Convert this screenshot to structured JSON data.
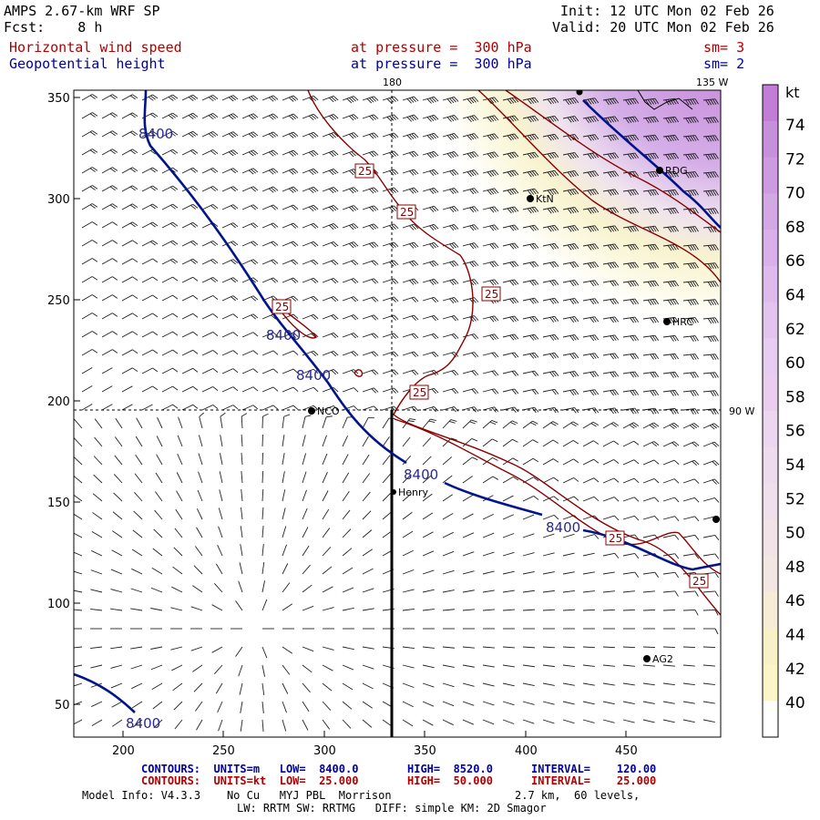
{
  "header": {
    "model": "AMPS 2.67-km WRF SP",
    "forecast": "Fcst:    8 h",
    "init": "Init: 12 UTC Mon 02 Feb 26",
    "valid": "Valid: 20 UTC Mon 02 Feb 26",
    "field1": {
      "name": "Horizontal wind speed",
      "level": "at pressure =  300 hPa",
      "smooth": "sm= 3"
    },
    "field2": {
      "name": "Geopotential height",
      "level": "at pressure =  300 hPa",
      "smooth": "sm= 2"
    }
  },
  "map": {
    "x_ticks": [
      "200",
      "250",
      "300",
      "350",
      "400",
      "450"
    ],
    "y_ticks": [
      "350",
      "300",
      "250",
      "200",
      "150",
      "100",
      "50"
    ],
    "meridian_labels": {
      "m180": "180",
      "m135w": "135 W",
      "m90w": "90 W"
    },
    "stations": [
      {
        "name": "KtN"
      },
      {
        "name": "RDG"
      },
      {
        "name": "HRC"
      },
      {
        "name": "NCO"
      },
      {
        "name": "Henry"
      },
      {
        "name": "AG2"
      }
    ],
    "height_contour_label": "8400",
    "wind_contour_label": "25"
  },
  "colorbar": {
    "unit": "kt",
    "labels": [
      "74",
      "72",
      "70",
      "68",
      "66",
      "64",
      "62",
      "60",
      "58",
      "56",
      "54",
      "52",
      "50",
      "48",
      "46",
      "44",
      "42",
      "40"
    ],
    "colors": [
      "#c27ed6",
      "#c890dc",
      "#ce9be0",
      "#d4a7e5",
      "#d9b1e8",
      "#debbec",
      "#e2c4ef",
      "#e6cdf1",
      "#eacdef",
      "#edd6ef",
      "#efdbee",
      "#f0e0ec",
      "#f1e3e8",
      "#f3e7e4",
      "#f6ecd8",
      "#f8f1c8",
      "#fbf5c8",
      "#ffffff"
    ]
  },
  "footer": {
    "c1_label": "CONTOURS:  UNITS=m   LOW=  8400.0",
    "c1_high": "HIGH=  8520.0",
    "c1_int": "INTERVAL=    120.00",
    "c2_label": "CONTOURS:  UNITS=kt  LOW=  25.000",
    "c2_high": "HIGH=  50.000",
    "c2_int": "INTERVAL=    25.000",
    "model_info": "Model Info: V4.3.3    No Cu   MYJ PBL  Morrison",
    "resolution": "2.7 km,  60 levels,",
    "physics": "LW: RRTM SW: RRTMG   DIFF: simple KM: 2D Smagor"
  }
}
